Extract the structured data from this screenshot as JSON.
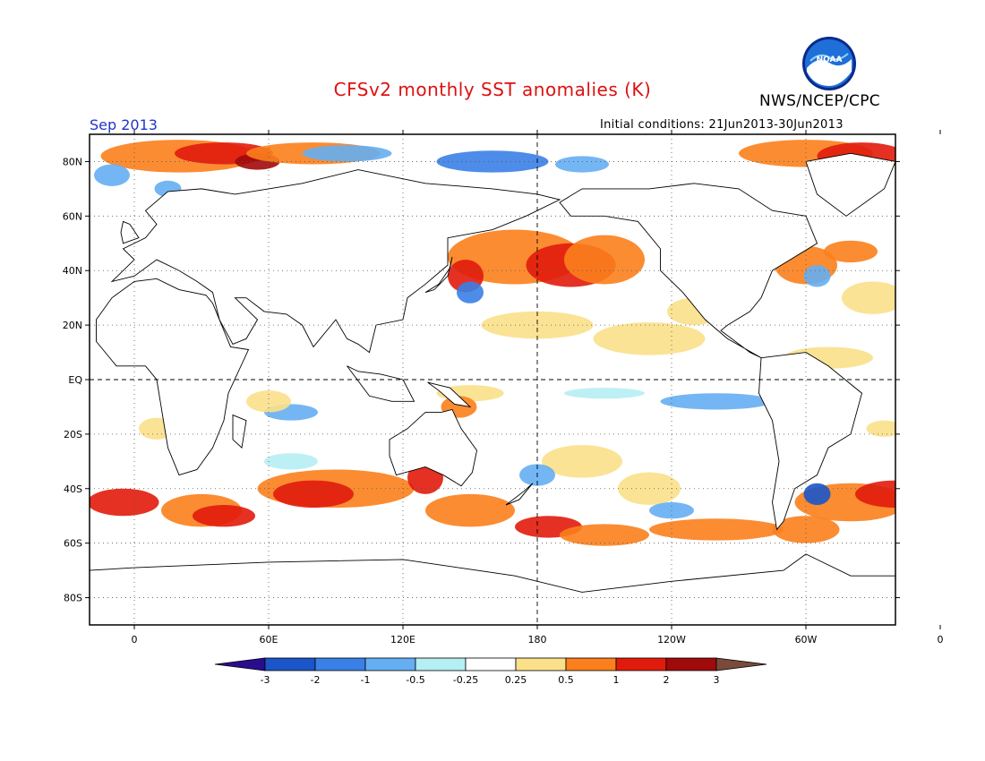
{
  "header": {
    "title": "CFSv2 monthly SST anomalies (K)",
    "agency": "NWS/NCEP/CPC",
    "month": "Sep 2013",
    "initial_conditions": "Initial conditions: 21Jun2013-30Jun2013",
    "logo_text": "NOAA"
  },
  "map": {
    "projection": "cylindrical equidistant",
    "lon_range": [
      -20,
      340
    ],
    "lat_range": [
      -90,
      90
    ],
    "lat_labels": [
      "80N",
      "60N",
      "40N",
      "20N",
      "EQ",
      "20S",
      "40S",
      "60S",
      "80S"
    ],
    "lon_labels": [
      "0",
      "60E",
      "120E",
      "180",
      "120W",
      "60W",
      "0"
    ]
  },
  "colorbar": {
    "labels": [
      "-3",
      "-2",
      "-1",
      "-0.5",
      "-0.25",
      "0.25",
      "0.5",
      "1",
      "2",
      "3"
    ],
    "colors": [
      "#2a0d8f",
      "#1a55c9",
      "#3a80e6",
      "#65aef2",
      "#b5eef3",
      "#ffffff",
      "#fbe08a",
      "#fb7f1c",
      "#e11b0c",
      "#a10a0a",
      "#7a4a3a"
    ],
    "land_color": "#ffffff"
  }
}
